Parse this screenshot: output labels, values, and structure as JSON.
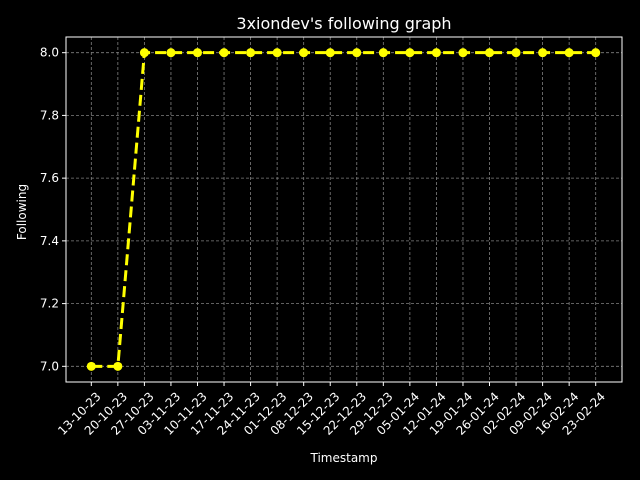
{
  "chart_data": {
    "type": "line",
    "title": "3xiondev's following graph",
    "xlabel": "Timestamp",
    "ylabel": "Following",
    "categories": [
      "13-10-23",
      "20-10-23",
      "27-10-23",
      "03-11-23",
      "10-11-23",
      "17-11-23",
      "24-11-23",
      "01-12-23",
      "08-12-23",
      "15-12-23",
      "22-12-23",
      "29-12-23",
      "05-01-24",
      "12-01-24",
      "19-01-24",
      "26-01-24",
      "02-02-24",
      "09-02-24",
      "16-02-24",
      "23-02-24"
    ],
    "series": [
      {
        "values": [
          7.0,
          7.0,
          8.0,
          8.0,
          8.0,
          8.0,
          8.0,
          8.0,
          8.0,
          8.0,
          8.0,
          8.0,
          8.0,
          8.0,
          8.0,
          8.0,
          8.0,
          8.0,
          8.0,
          8.0
        ]
      }
    ],
    "yticks": [
      "7.0",
      "7.2",
      "7.4",
      "7.6",
      "7.8",
      "8.0"
    ],
    "ylim": [
      6.95,
      8.05
    ],
    "grid": true,
    "colors": {
      "background": "#000000",
      "line": "#ffff00",
      "grid": "#808080",
      "axis": "#ffffff",
      "text": "#ffffff"
    }
  }
}
